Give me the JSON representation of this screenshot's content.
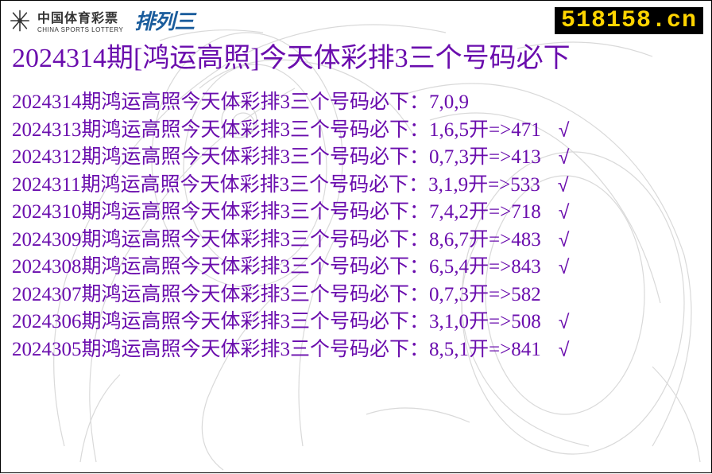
{
  "colors": {
    "title": "#6a0dad",
    "row_text": "#6a0dad",
    "logo_pls": "#1a5c9c",
    "watermark_bg": "#000000",
    "watermark_fg": "#ffd400",
    "bg_line": "#888888"
  },
  "logo": {
    "cn": "中国体育彩票",
    "en": "CHINA SPORTS LOTTERY",
    "pls": "排列三"
  },
  "watermark": "518158.cn",
  "title": "2024314期[鸿运高照]今天体彩排3三个号码必下",
  "row_label": "期鸿运高照今天体彩排3三个号码必下：",
  "result_prefix": " 开=>",
  "checkmark": "√",
  "rows": [
    {
      "issue": "2024314",
      "picks": "7,0,9",
      "result": "",
      "hit": false
    },
    {
      "issue": "2024313",
      "picks": "1,6,5",
      "result": "471",
      "hit": true
    },
    {
      "issue": "2024312",
      "picks": "0,7,3",
      "result": "413",
      "hit": true
    },
    {
      "issue": "2024311",
      "picks": "3,1,9",
      "result": "533",
      "hit": true
    },
    {
      "issue": "2024310",
      "picks": "7,4,2",
      "result": "718",
      "hit": true
    },
    {
      "issue": "2024309",
      "picks": "8,6,7",
      "result": "483",
      "hit": true
    },
    {
      "issue": "2024308",
      "picks": "6,5,4",
      "result": "843",
      "hit": true
    },
    {
      "issue": "2024307",
      "picks": "0,7,3",
      "result": "582",
      "hit": false
    },
    {
      "issue": "2024306",
      "picks": "3,1,0",
      "result": "508",
      "hit": true
    },
    {
      "issue": "2024305",
      "picks": "8,5,1",
      "result": "841",
      "hit": true
    }
  ]
}
